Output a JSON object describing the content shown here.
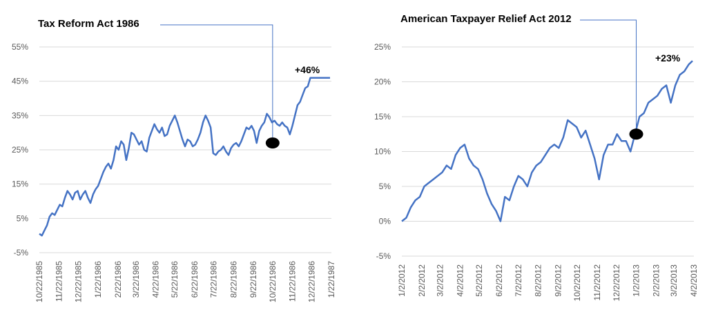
{
  "colors": {
    "line": "#4472c4",
    "marker": "#000000",
    "grid": "#d9d9d9",
    "tick": "#595959"
  },
  "chart_data": [
    {
      "type": "line",
      "title": "Tax Reform Act 1986",
      "ylim": [
        -5,
        55
      ],
      "y_ticks": [
        -5,
        5,
        15,
        25,
        35,
        45,
        55
      ],
      "y_tick_labels": [
        "-5%",
        "5%",
        "15%",
        "25%",
        "35%",
        "45%",
        "55%"
      ],
      "x_tick_labels": [
        "10/22/1985",
        "11/22/1985",
        "12/22/1985",
        "1/22/1986",
        "2/22/1986",
        "3/22/1986",
        "4/22/1986",
        "5/22/1986",
        "6/22/1986",
        "7/22/1986",
        "8/22/1986",
        "9/22/1986",
        "10/22/1986",
        "11/22/1986",
        "12/22/1986",
        "1/22/1987"
      ],
      "annotation": "+46%",
      "event_date": "10/22/1986",
      "event_value": 27,
      "grid": true,
      "series": [
        {
          "x": [
            "10/22/1985",
            "10/26/1985",
            "10/30/1985",
            "11/3/1985",
            "11/7/1985",
            "11/11/1985",
            "11/15/1985",
            "11/19/1985",
            "11/23/1985",
            "11/27/1985",
            "12/1/1985",
            "12/5/1985",
            "12/9/1985",
            "12/13/1985",
            "12/17/1985",
            "12/21/1985",
            "12/25/1985",
            "12/29/1985",
            "1/2/1986",
            "1/6/1986",
            "1/10/1986",
            "1/14/1986",
            "1/18/1986",
            "1/22/1986",
            "1/26/1986",
            "1/30/1986",
            "2/3/1986",
            "2/7/1986",
            "2/11/1986",
            "2/15/1986",
            "2/19/1986",
            "2/23/1986",
            "2/27/1986",
            "3/3/1986",
            "3/7/1986",
            "3/11/1986",
            "3/15/1986",
            "3/19/1986",
            "3/23/1986",
            "3/27/1986",
            "3/31/1986",
            "4/4/1986",
            "4/8/1986",
            "4/12/1986",
            "4/16/1986",
            "4/20/1986",
            "4/24/1986",
            "4/28/1986",
            "5/2/1986",
            "5/6/1986",
            "5/10/1986",
            "5/14/1986",
            "5/18/1986",
            "5/22/1986",
            "5/26/1986",
            "5/30/1986",
            "6/3/1986",
            "6/7/1986",
            "6/11/1986",
            "6/15/1986",
            "6/19/1986",
            "6/23/1986",
            "6/27/1986",
            "7/1/1986",
            "7/5/1986",
            "7/9/1986",
            "7/13/1986",
            "7/17/1986",
            "7/21/1986",
            "7/25/1986",
            "7/29/1986",
            "8/2/1986",
            "8/6/1986",
            "8/10/1986",
            "8/14/1986",
            "8/18/1986",
            "8/22/1986",
            "8/26/1986",
            "8/30/1986",
            "9/3/1986",
            "9/7/1986",
            "9/11/1986",
            "9/15/1986",
            "9/19/1986",
            "9/23/1986",
            "9/27/1986",
            "10/1/1986",
            "10/5/1986",
            "10/9/1986",
            "10/13/1986",
            "10/17/1986",
            "10/21/1986",
            "10/25/1986",
            "10/29/1986",
            "11/2/1986",
            "11/6/1986",
            "11/10/1986",
            "11/14/1986",
            "11/18/1986",
            "11/22/1986",
            "11/26/1986",
            "11/30/1986",
            "12/4/1986",
            "12/8/1986",
            "12/12/1986",
            "12/16/1986",
            "12/20/1986",
            "12/24/1986",
            "12/28/1986",
            "1/1/1987",
            "1/5/1987",
            "1/9/1987",
            "1/13/1987",
            "1/17/1987",
            "1/21/1987",
            "1/25/1987"
          ],
          "values": [
            0.5,
            0.0,
            1.5,
            3.0,
            5.5,
            6.5,
            6.0,
            7.5,
            9.0,
            8.5,
            11.0,
            13.0,
            12.0,
            10.5,
            12.5,
            13.0,
            10.5,
            12.0,
            13.0,
            11.0,
            9.5,
            12.0,
            13.5,
            14.5,
            16.5,
            18.5,
            20.0,
            21.0,
            19.5,
            22.0,
            26.0,
            25.0,
            27.5,
            26.5,
            22.0,
            25.5,
            30.0,
            29.5,
            28.0,
            26.5,
            27.5,
            25.0,
            24.5,
            28.5,
            30.5,
            32.5,
            31.0,
            30.0,
            31.5,
            29.0,
            29.5,
            32.0,
            33.5,
            35.0,
            33.0,
            30.5,
            28.0,
            26.0,
            28.0,
            27.5,
            26.0,
            26.5,
            28.0,
            30.0,
            33.0,
            35.0,
            33.5,
            31.5,
            24.0,
            23.5,
            24.5,
            25.0,
            26.0,
            24.5,
            23.5,
            25.5,
            26.5,
            27.0,
            26.0,
            27.5,
            29.5,
            31.5,
            31.0,
            32.0,
            30.5,
            27.0,
            30.5,
            32.0,
            33.0,
            35.5,
            34.5,
            33.0,
            33.5,
            32.5,
            32.0,
            33.0,
            32.0,
            31.5,
            29.5,
            32.0,
            35.0,
            38.0,
            39.0,
            41.0,
            43.0,
            43.5,
            46.0,
            46.0,
            46.0,
            46.0,
            46.0,
            46.0,
            46.0,
            46.0,
            46.0,
            46.0
          ]
        }
      ]
    },
    {
      "type": "line",
      "title": "American Taxpayer Relief Act 2012",
      "ylim": [
        -5,
        25
      ],
      "y_ticks": [
        -5,
        0,
        5,
        10,
        15,
        20,
        25
      ],
      "y_tick_labels": [
        "-5%",
        "0%",
        "5%",
        "10%",
        "15%",
        "20%",
        "25%"
      ],
      "x_tick_labels": [
        "1/2/2012",
        "2/2/2012",
        "3/2/2012",
        "4/2/2012",
        "5/2/2012",
        "6/2/2012",
        "7/2/2012",
        "8/2/2012",
        "9/2/2012",
        "10/2/2012",
        "11/2/2012",
        "12/2/2012",
        "1/2/2013",
        "2/2/2013",
        "3/2/2013",
        "4/2/2013"
      ],
      "annotation": "+23%",
      "event_date": "1/2/2013",
      "event_value": 12.5,
      "grid": true,
      "series": [
        {
          "x": [
            "1/2/2012",
            "1/9/2012",
            "1/16/2012",
            "1/23/2012",
            "1/30/2012",
            "2/6/2012",
            "2/13/2012",
            "2/20/2012",
            "2/27/2012",
            "3/5/2012",
            "3/12/2012",
            "3/19/2012",
            "3/26/2012",
            "4/2/2012",
            "4/9/2012",
            "4/16/2012",
            "4/23/2012",
            "4/30/2012",
            "5/7/2012",
            "5/14/2012",
            "5/21/2012",
            "5/28/2012",
            "6/4/2012",
            "6/11/2012",
            "6/18/2012",
            "6/25/2012",
            "7/2/2012",
            "7/9/2012",
            "7/16/2012",
            "7/23/2012",
            "7/30/2012",
            "8/6/2012",
            "8/13/2012",
            "8/20/2012",
            "8/27/2012",
            "9/3/2012",
            "9/10/2012",
            "9/17/2012",
            "9/24/2012",
            "10/1/2012",
            "10/8/2012",
            "10/15/2012",
            "10/22/2012",
            "10/29/2012",
            "11/5/2012",
            "11/12/2012",
            "11/19/2012",
            "11/26/2012",
            "12/3/2012",
            "12/10/2012",
            "12/17/2012",
            "12/24/2012",
            "12/31/2012",
            "1/7/2013",
            "1/14/2013",
            "1/21/2013",
            "1/28/2013",
            "2/4/2013",
            "2/11/2013",
            "2/18/2013",
            "2/25/2013",
            "3/4/2013",
            "3/11/2013",
            "3/18/2013",
            "3/25/2013",
            "4/1/2013"
          ],
          "values": [
            0.0,
            0.5,
            2.0,
            3.0,
            3.5,
            5.0,
            5.5,
            6.0,
            6.5,
            7.0,
            8.0,
            7.5,
            9.5,
            10.5,
            11.0,
            9.0,
            8.0,
            7.5,
            6.0,
            4.0,
            2.5,
            1.5,
            0.0,
            3.5,
            3.0,
            5.0,
            6.5,
            6.0,
            5.0,
            7.0,
            8.0,
            8.5,
            9.5,
            10.5,
            11.0,
            10.5,
            12.0,
            14.5,
            14.0,
            13.5,
            12.0,
            13.0,
            11.0,
            9.0,
            6.0,
            9.5,
            11.0,
            11.0,
            12.5,
            11.5,
            11.5,
            10.0,
            12.5,
            15.0,
            15.5,
            17.0,
            17.5,
            18.0,
            19.0,
            19.5,
            17.0,
            19.5,
            21.0,
            21.5,
            22.5,
            23.0
          ]
        }
      ]
    }
  ]
}
